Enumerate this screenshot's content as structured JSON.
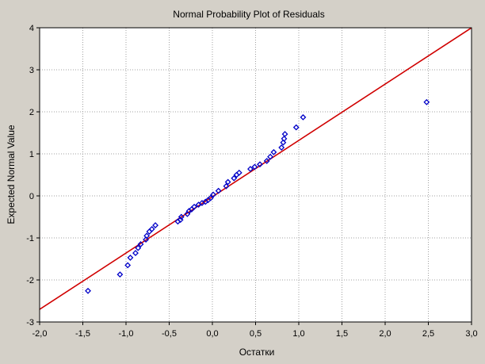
{
  "chart_data": {
    "type": "scatter",
    "title": "Normal Probability Plot of Residuals",
    "xlabel": "Остатки",
    "ylabel": "Expected Normal Value",
    "xlim": [
      -2.0,
      3.0
    ],
    "ylim": [
      -3,
      4
    ],
    "x_ticks": [
      -2.0,
      -1.5,
      -1.0,
      -0.5,
      0.0,
      0.5,
      1.0,
      1.5,
      2.0,
      2.5,
      3.0
    ],
    "x_tick_labels": [
      "-2,0",
      "-1,5",
      "-1,0",
      "-0,5",
      "0,0",
      "0,5",
      "1,0",
      "1,5",
      "2,0",
      "2,5",
      "3,0"
    ],
    "y_ticks": [
      -3,
      -2,
      -1,
      0,
      1,
      2,
      3,
      4
    ],
    "y_tick_labels": [
      "-3",
      "-2",
      "-1",
      "0",
      "1",
      "2",
      "3",
      "4"
    ],
    "grid": true,
    "points": [
      {
        "x": -1.44,
        "y": -2.26
      },
      {
        "x": -1.07,
        "y": -1.87
      },
      {
        "x": -0.98,
        "y": -1.65
      },
      {
        "x": -0.95,
        "y": -1.47
      },
      {
        "x": -0.89,
        "y": -1.36
      },
      {
        "x": -0.86,
        "y": -1.24
      },
      {
        "x": -0.83,
        "y": -1.15
      },
      {
        "x": -0.77,
        "y": -1.04
      },
      {
        "x": -0.76,
        "y": -0.95
      },
      {
        "x": -0.73,
        "y": -0.85
      },
      {
        "x": -0.7,
        "y": -0.79
      },
      {
        "x": -0.66,
        "y": -0.7
      },
      {
        "x": -0.4,
        "y": -0.61
      },
      {
        "x": -0.37,
        "y": -0.57
      },
      {
        "x": -0.36,
        "y": -0.5
      },
      {
        "x": -0.29,
        "y": -0.43
      },
      {
        "x": -0.27,
        "y": -0.36
      },
      {
        "x": -0.24,
        "y": -0.32
      },
      {
        "x": -0.21,
        "y": -0.26
      },
      {
        "x": -0.16,
        "y": -0.21
      },
      {
        "x": -0.12,
        "y": -0.17
      },
      {
        "x": -0.08,
        "y": -0.14
      },
      {
        "x": -0.05,
        "y": -0.1
      },
      {
        "x": -0.02,
        "y": -0.05
      },
      {
        "x": 0.01,
        "y": 0.03
      },
      {
        "x": 0.07,
        "y": 0.12
      },
      {
        "x": 0.16,
        "y": 0.23
      },
      {
        "x": 0.18,
        "y": 0.33
      },
      {
        "x": 0.25,
        "y": 0.42
      },
      {
        "x": 0.28,
        "y": 0.5
      },
      {
        "x": 0.31,
        "y": 0.55
      },
      {
        "x": 0.44,
        "y": 0.64
      },
      {
        "x": 0.49,
        "y": 0.69
      },
      {
        "x": 0.55,
        "y": 0.75
      },
      {
        "x": 0.63,
        "y": 0.83
      },
      {
        "x": 0.67,
        "y": 0.93
      },
      {
        "x": 0.71,
        "y": 1.04
      },
      {
        "x": 0.8,
        "y": 1.15
      },
      {
        "x": 0.82,
        "y": 1.27
      },
      {
        "x": 0.83,
        "y": 1.36
      },
      {
        "x": 0.84,
        "y": 1.47
      },
      {
        "x": 0.97,
        "y": 1.63
      },
      {
        "x": 1.05,
        "y": 1.87
      },
      {
        "x": 2.48,
        "y": 2.23
      }
    ],
    "fit_line": {
      "x": [
        -2.0,
        3.0
      ],
      "y": [
        -2.7,
        4.0
      ]
    },
    "colors": {
      "frame_bg": "#d4d0c8",
      "plot_bg": "#ffffff",
      "marker": "#0000c8",
      "fit_line": "#d00000",
      "grid": "#a0a0a0"
    }
  }
}
